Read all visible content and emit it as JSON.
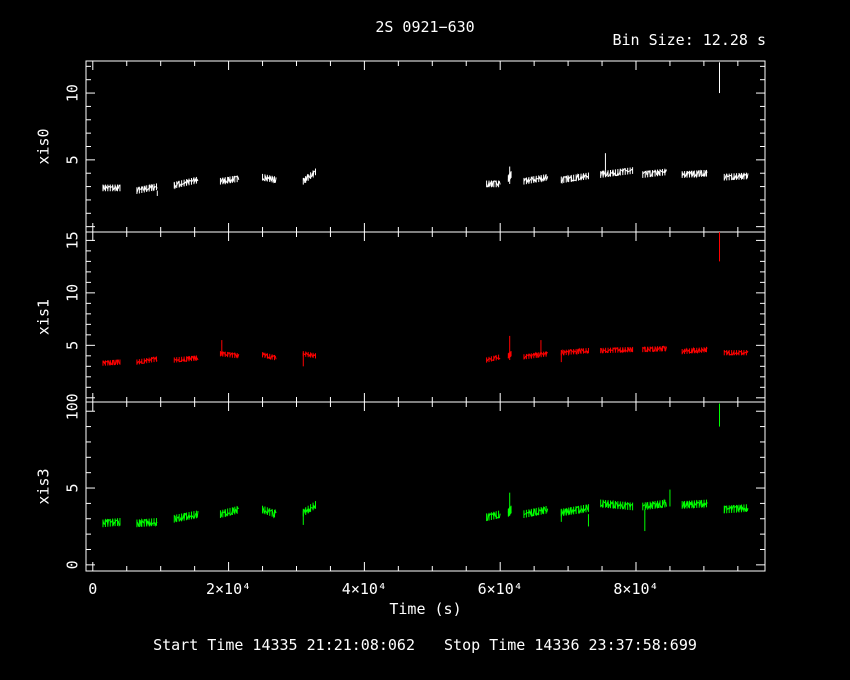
{
  "header": {
    "title": "2S 0921−630",
    "bin_size": "Bin Size: 12.28 s"
  },
  "footer": {
    "start": "Start Time 14335 21:21:08:062",
    "stop": "Stop Time 14336 23:37:58:699"
  },
  "chart_data": [
    {
      "type": "scatter",
      "title": "2S 0921−630",
      "xlabel": "Time (s)",
      "ylabel": "xis0",
      "xlim": [
        -1000,
        99000
      ],
      "ylim": [
        -0.4,
        12.4
      ],
      "color": "#ffffff",
      "y_ticks": [
        {
          "value": 5,
          "label": "5"
        },
        {
          "value": 10,
          "label": "10"
        }
      ],
      "segments": [
        {
          "x": [
            1500,
            4000
          ],
          "y": [
            2.9,
            2.9
          ]
        },
        {
          "x": [
            6500,
            9500
          ],
          "y": [
            2.7,
            3.0
          ]
        },
        {
          "x": [
            12000,
            15500
          ],
          "y": [
            3.1,
            3.5
          ]
        },
        {
          "x": [
            18800,
            21500
          ],
          "y": [
            3.4,
            3.6
          ]
        },
        {
          "x": [
            25000,
            27000
          ],
          "y": [
            3.7,
            3.5
          ]
        },
        {
          "x": [
            31000,
            32800
          ],
          "y": [
            3.4,
            4.1
          ]
        },
        {
          "x": [
            58000,
            60000
          ],
          "y": [
            3.2,
            3.2
          ]
        },
        {
          "x": [
            61200,
            61600
          ],
          "y": [
            3.6,
            3.9
          ]
        },
        {
          "x": [
            63500,
            67000
          ],
          "y": [
            3.4,
            3.7
          ]
        },
        {
          "x": [
            69000,
            73000
          ],
          "y": [
            3.5,
            3.8
          ]
        },
        {
          "x": [
            74800,
            79500
          ],
          "y": [
            3.9,
            4.2
          ]
        },
        {
          "x": [
            81000,
            84500
          ],
          "y": [
            3.9,
            4.1
          ]
        },
        {
          "x": [
            86800,
            90500
          ],
          "y": [
            3.9,
            4.0
          ]
        },
        {
          "x": [
            93000,
            96500
          ],
          "y": [
            3.7,
            3.8
          ]
        }
      ],
      "spikes": [
        {
          "x": 9500,
          "low": 2.3,
          "high": 2.7
        },
        {
          "x": 61400,
          "low": 3.2,
          "high": 4.5
        },
        {
          "x": 75500,
          "low": 4.2,
          "high": 5.5
        },
        {
          "x": 92300,
          "low": 10,
          "high": 12.3
        }
      ]
    },
    {
      "type": "scatter",
      "xlabel": "Time (s)",
      "ylabel": "xis1",
      "xlim": [
        -1000,
        99000
      ],
      "ylim": [
        -0.4,
        15.8
      ],
      "color": "#ff0000",
      "y_ticks": [
        {
          "value": 0,
          "label": "0"
        },
        {
          "value": 5,
          "label": "5"
        },
        {
          "value": 10,
          "label": "10"
        },
        {
          "value": 15,
          "label": "15"
        }
      ],
      "segments": [
        {
          "x": [
            1500,
            4000
          ],
          "y": [
            3.3,
            3.4
          ]
        },
        {
          "x": [
            6500,
            9500
          ],
          "y": [
            3.4,
            3.7
          ]
        },
        {
          "x": [
            12000,
            15500
          ],
          "y": [
            3.6,
            3.8
          ]
        },
        {
          "x": [
            18800,
            21500
          ],
          "y": [
            4.2,
            4.0
          ]
        },
        {
          "x": [
            25000,
            27000
          ],
          "y": [
            4.1,
            3.8
          ]
        },
        {
          "x": [
            31000,
            32800
          ],
          "y": [
            4.2,
            4.0
          ]
        },
        {
          "x": [
            58000,
            60000
          ],
          "y": [
            3.6,
            3.9
          ]
        },
        {
          "x": [
            61200,
            61600
          ],
          "y": [
            4.0,
            4.2
          ]
        },
        {
          "x": [
            63500,
            67000
          ],
          "y": [
            3.9,
            4.2
          ]
        },
        {
          "x": [
            69000,
            73000
          ],
          "y": [
            4.3,
            4.5
          ]
        },
        {
          "x": [
            74800,
            79500
          ],
          "y": [
            4.5,
            4.6
          ]
        },
        {
          "x": [
            81000,
            84500
          ],
          "y": [
            4.6,
            4.7
          ]
        },
        {
          "x": [
            86800,
            90500
          ],
          "y": [
            4.4,
            4.6
          ]
        },
        {
          "x": [
            93000,
            96500
          ],
          "y": [
            4.3,
            4.3
          ]
        }
      ],
      "spikes": [
        {
          "x": 19000,
          "low": 4.0,
          "high": 5.5
        },
        {
          "x": 31000,
          "low": 3.0,
          "high": 4.3
        },
        {
          "x": 61400,
          "low": 3.6,
          "high": 5.9
        },
        {
          "x": 66000,
          "low": 4.0,
          "high": 5.5
        },
        {
          "x": 69000,
          "low": 3.4,
          "high": 4.3
        },
        {
          "x": 92300,
          "low": 13,
          "high": 15.8
        }
      ]
    },
    {
      "type": "scatter",
      "xlabel": "Time (s)",
      "ylabel": "xis3",
      "xlim": [
        -1000,
        99000
      ],
      "ylim": [
        -0.4,
        10.6
      ],
      "color": "#00ff00",
      "y_ticks": [
        {
          "value": 0,
          "label": "0"
        },
        {
          "value": 5,
          "label": "5"
        },
        {
          "value": 10,
          "label": "10"
        }
      ],
      "x_ticks": [
        {
          "value": 0,
          "label": "0"
        },
        {
          "value": 20000,
          "label": "2×10⁴"
        },
        {
          "value": 40000,
          "label": "4×10⁴"
        },
        {
          "value": 60000,
          "label": "6×10⁴"
        },
        {
          "value": 80000,
          "label": "8×10⁴"
        }
      ],
      "segments": [
        {
          "x": [
            1500,
            4000
          ],
          "y": [
            2.7,
            2.8
          ]
        },
        {
          "x": [
            6500,
            9500
          ],
          "y": [
            2.7,
            2.8
          ]
        },
        {
          "x": [
            12000,
            15500
          ],
          "y": [
            3.0,
            3.3
          ]
        },
        {
          "x": [
            18800,
            21500
          ],
          "y": [
            3.3,
            3.6
          ]
        },
        {
          "x": [
            25000,
            27000
          ],
          "y": [
            3.6,
            3.3
          ]
        },
        {
          "x": [
            31000,
            32800
          ],
          "y": [
            3.4,
            3.9
          ]
        },
        {
          "x": [
            58000,
            60000
          ],
          "y": [
            3.1,
            3.3
          ]
        },
        {
          "x": [
            61200,
            61600
          ],
          "y": [
            3.4,
            3.6
          ]
        },
        {
          "x": [
            63500,
            67000
          ],
          "y": [
            3.3,
            3.6
          ]
        },
        {
          "x": [
            69000,
            73000
          ],
          "y": [
            3.4,
            3.7
          ]
        },
        {
          "x": [
            74800,
            79500
          ],
          "y": [
            4.0,
            3.8
          ]
        },
        {
          "x": [
            81000,
            84500
          ],
          "y": [
            3.8,
            4.0
          ]
        },
        {
          "x": [
            86800,
            90500
          ],
          "y": [
            3.9,
            4.0
          ]
        },
        {
          "x": [
            93000,
            96500
          ],
          "y": [
            3.6,
            3.7
          ]
        }
      ],
      "spikes": [
        {
          "x": 31000,
          "low": 2.6,
          "high": 3.5
        },
        {
          "x": 61400,
          "low": 3.2,
          "high": 4.7
        },
        {
          "x": 69000,
          "low": 2.8,
          "high": 3.6
        },
        {
          "x": 73000,
          "low": 2.5,
          "high": 3.3
        },
        {
          "x": 81300,
          "low": 2.2,
          "high": 3.6
        },
        {
          "x": 85000,
          "low": 3.8,
          "high": 4.9
        },
        {
          "x": 92300,
          "low": 9,
          "high": 10.5
        }
      ]
    }
  ]
}
